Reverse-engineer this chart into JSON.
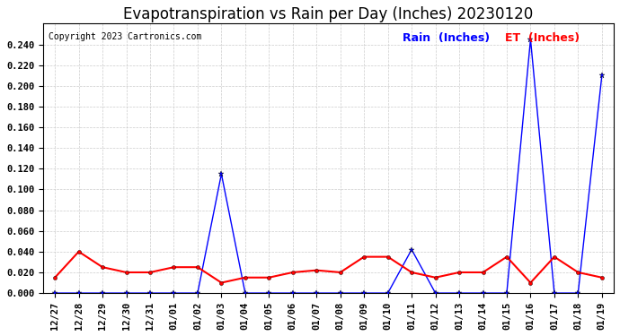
{
  "title": "Evapotranspiration vs Rain per Day (Inches) 20230120",
  "copyright": "Copyright 2023 Cartronics.com",
  "legend_rain": "Rain  (Inches)",
  "legend_et": "ET  (Inches)",
  "x_labels": [
    "12/27",
    "12/28",
    "12/29",
    "12/30",
    "12/31",
    "01/01",
    "01/02",
    "01/03",
    "01/04",
    "01/05",
    "01/06",
    "01/07",
    "01/08",
    "01/09",
    "01/10",
    "01/11",
    "01/12",
    "01/13",
    "01/14",
    "01/15",
    "01/16",
    "01/17",
    "01/18",
    "01/19"
  ],
  "rain_values": [
    0.0,
    0.0,
    0.0,
    0.0,
    0.0,
    0.0,
    0.0,
    0.115,
    0.0,
    0.0,
    0.0,
    0.0,
    0.0,
    0.0,
    0.0,
    0.042,
    0.0,
    0.0,
    0.0,
    0.0,
    0.245,
    0.0,
    0.0,
    0.21
  ],
  "et_values": [
    0.015,
    0.04,
    0.025,
    0.02,
    0.02,
    0.025,
    0.025,
    0.01,
    0.015,
    0.015,
    0.02,
    0.022,
    0.02,
    0.035,
    0.035,
    0.02,
    0.015,
    0.02,
    0.02,
    0.035,
    0.01,
    0.035,
    0.02,
    0.015
  ],
  "rain_color": "blue",
  "et_color": "red",
  "ylim": [
    0.0,
    0.26
  ],
  "yticks": [
    0.0,
    0.02,
    0.04,
    0.06,
    0.08,
    0.1,
    0.12,
    0.14,
    0.16,
    0.18,
    0.2,
    0.22,
    0.24
  ],
  "background_color": "#ffffff",
  "grid_color": "#cccccc",
  "title_fontsize": 12,
  "copyright_fontsize": 7,
  "legend_fontsize": 9,
  "tick_fontsize": 7.5
}
